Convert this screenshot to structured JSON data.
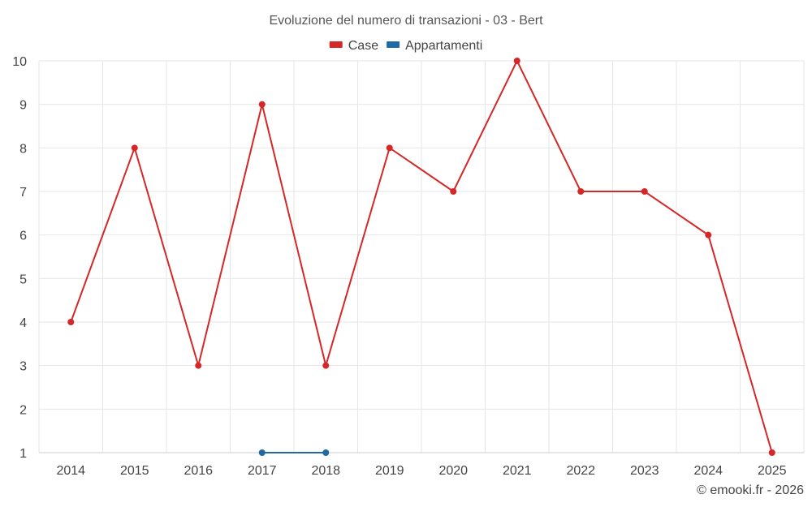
{
  "chart_data": {
    "type": "line",
    "title": "Evoluzione del numero di transazioni - 03 - Bert",
    "categories": [
      "2014",
      "2015",
      "2016",
      "2017",
      "2018",
      "2019",
      "2020",
      "2021",
      "2022",
      "2023",
      "2024",
      "2025"
    ],
    "series": [
      {
        "name": "Case",
        "color": "#d62728",
        "values": [
          4,
          8,
          3,
          9,
          3,
          8,
          7,
          10,
          7,
          7,
          6,
          1
        ]
      },
      {
        "name": "Appartamenti",
        "color": "#1f6aa5",
        "values": [
          null,
          null,
          null,
          1,
          1,
          null,
          null,
          null,
          null,
          null,
          null,
          null
        ]
      }
    ],
    "yticks": [
      1,
      2,
      3,
      4,
      5,
      6,
      7,
      8,
      9,
      10
    ],
    "ylim": [
      1,
      10
    ],
    "xlabel": "",
    "ylabel": "",
    "legend_position": "top-center",
    "grid": true
  },
  "credit": "© emooki.fr - 2026"
}
